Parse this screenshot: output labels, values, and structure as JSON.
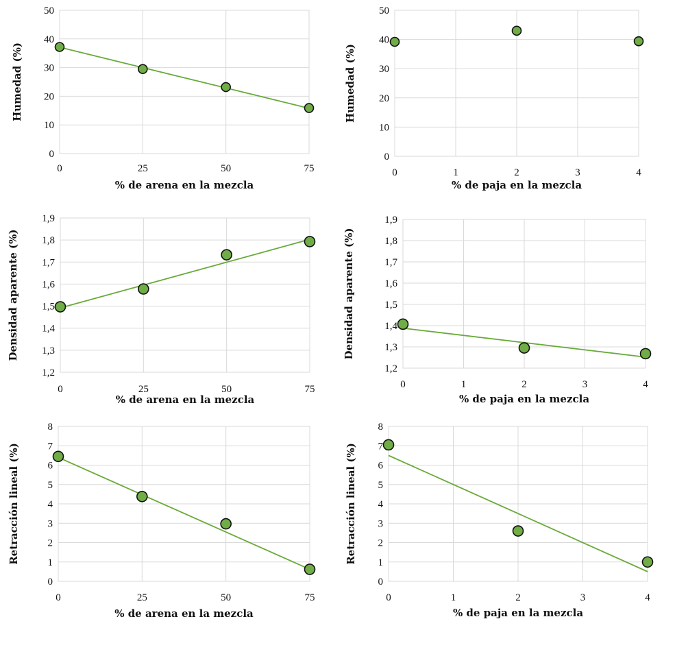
{
  "style": {
    "line_color": "#6aaa3a",
    "point_fill": "#70ad47",
    "point_stroke": "#111111",
    "grid_color": "#d9d9d9"
  },
  "chart_data": [
    {
      "type": "scatter",
      "xlabel": "% de arena en la mezcla",
      "ylabel": "Humedad (%)",
      "xlim": [
        0,
        75
      ],
      "ylim": [
        0,
        50
      ],
      "xticks": [
        "0",
        "25",
        "50",
        "75"
      ],
      "yticks": [
        "0",
        "10",
        "20",
        "30",
        "40",
        "50"
      ],
      "grid": true,
      "series": [
        {
          "x": [
            0,
            25,
            50,
            75
          ],
          "y": [
            37.2,
            29.5,
            23.2,
            15.9
          ]
        }
      ],
      "trendline": {
        "x": [
          0,
          75
        ],
        "y": [
          37.1,
          15.8
        ]
      }
    },
    {
      "type": "scatter",
      "xlabel": "% de paja en la mezcla",
      "ylabel": "Humedad (%)",
      "xlim": [
        0,
        4
      ],
      "ylim": [
        0,
        50
      ],
      "xticks": [
        "0",
        "1",
        "2",
        "3",
        "4"
      ],
      "yticks": [
        "0",
        "10",
        "20",
        "30",
        "40",
        "50"
      ],
      "grid": true,
      "series": [
        {
          "x": [
            0,
            2,
            4
          ],
          "y": [
            39.2,
            43.0,
            39.4
          ]
        }
      ]
    },
    {
      "type": "scatter",
      "xlabel": "% de arena en la mezcla",
      "ylabel": "Densidad aparente (%)",
      "xlim": [
        0,
        75
      ],
      "ylim": [
        1.2,
        1.9
      ],
      "xticks": [
        "0",
        "25",
        "50",
        "75"
      ],
      "yticks": [
        "1,2",
        "1,3",
        "1,4",
        "1,5",
        "1,6",
        "1,7",
        "1,8",
        "1,9"
      ],
      "grid": true,
      "series": [
        {
          "x": [
            0,
            25,
            50,
            75
          ],
          "y": [
            1.497,
            1.578,
            1.733,
            1.793
          ]
        }
      ],
      "trendline": {
        "x": [
          0,
          75
        ],
        "y": [
          1.492,
          1.803
        ]
      }
    },
    {
      "type": "scatter",
      "xlabel": "% de paja en la mezcla",
      "ylabel": "Densidad aparente (%)",
      "xlim": [
        0,
        4
      ],
      "ylim": [
        1.2,
        1.9
      ],
      "xticks": [
        "0",
        "1",
        "2",
        "3",
        "4"
      ],
      "yticks": [
        "1,2",
        "1,3",
        "1,4",
        "1,5",
        "1,6",
        "1,7",
        "1,8",
        "1,9"
      ],
      "grid": true,
      "series": [
        {
          "x": [
            0,
            2,
            4
          ],
          "y": [
            1.407,
            1.295,
            1.268
          ]
        }
      ],
      "trendline": {
        "x": [
          0,
          4
        ],
        "y": [
          1.388,
          1.252
        ]
      }
    },
    {
      "type": "scatter",
      "xlabel": "% de arena en la mezcla",
      "ylabel": "Retracción lineal   (%)",
      "xlim": [
        0,
        75
      ],
      "ylim": [
        0,
        8
      ],
      "xticks": [
        "0",
        "25",
        "50",
        "75"
      ],
      "yticks": [
        "0",
        "1",
        "2",
        "3",
        "4",
        "5",
        "6",
        "7",
        "8"
      ],
      "grid": true,
      "series": [
        {
          "x": [
            0,
            25,
            50,
            75
          ],
          "y": [
            6.45,
            4.38,
            2.97,
            0.62
          ]
        }
      ],
      "trendline": {
        "x": [
          0,
          75
        ],
        "y": [
          6.4,
          0.62
        ]
      }
    },
    {
      "type": "scatter",
      "xlabel": "% de paja en la mezcla",
      "ylabel": "Retracción lineal   (%)",
      "xlim": [
        0,
        4
      ],
      "ylim": [
        0,
        8
      ],
      "xticks": [
        "0",
        "1",
        "2",
        "3",
        "4"
      ],
      "yticks": [
        "0",
        "1",
        "2",
        "3",
        "4",
        "5",
        "6",
        "7",
        "8"
      ],
      "grid": true,
      "series": [
        {
          "x": [
            0,
            2,
            4
          ],
          "y": [
            7.05,
            2.6,
            1.0
          ]
        }
      ],
      "trendline": {
        "x": [
          0,
          4
        ],
        "y": [
          6.5,
          0.5
        ]
      }
    }
  ]
}
